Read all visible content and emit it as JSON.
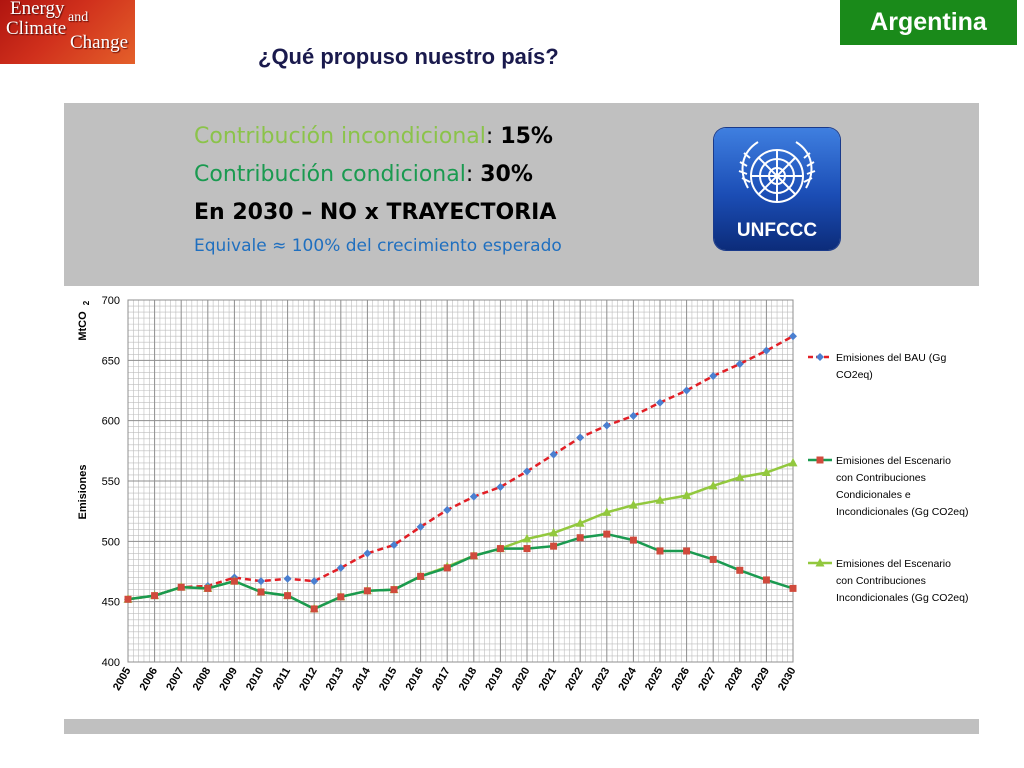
{
  "logo": {
    "line1": "Energy",
    "line2": "and",
    "line3": "Climate",
    "line4": "Change"
  },
  "country_badge": "Argentina",
  "title": "¿Qué propuso nuestro país?",
  "info": {
    "uncond_label": "Contribución incondicional",
    "uncond_value": "15%",
    "cond_label": "Contribución condicional",
    "cond_value": "30%",
    "colon": ": ",
    "line3": "En 2030 – NO x TRAYECTORIA",
    "line4": "Equivale ≈ 100% del crecimiento esperado"
  },
  "unfccc_label": "UNFCCC",
  "chart_data": {
    "type": "line",
    "xlabel": "",
    "ylabel_parts": [
      "Emisiones",
      "MtCO",
      "2"
    ],
    "ylim": [
      400,
      700
    ],
    "yticks": [
      400,
      450,
      500,
      550,
      600,
      650,
      700
    ],
    "grid": true,
    "legend_position": "right",
    "categories": [
      "2005",
      "2006",
      "2007",
      "2008",
      "2009",
      "2010",
      "2011",
      "2012",
      "2013",
      "2014",
      "2015",
      "2016",
      "2017",
      "2018",
      "2019",
      "2020",
      "2021",
      "2022",
      "2023",
      "2024",
      "2025",
      "2026",
      "2027",
      "2028",
      "2029",
      "2030"
    ],
    "series": [
      {
        "name": "Emisiones del BAU (Gg CO2eq)",
        "legend_lines": [
          "Emisiones del BAU (Gg",
          "CO2eq)"
        ],
        "color": "#e21f26",
        "marker_color": "#4a7fd0",
        "marker": "diamond",
        "dashed": true,
        "values": [
          452,
          455,
          462,
          463,
          470,
          467,
          469,
          467,
          478,
          490,
          497,
          512,
          526,
          537,
          545,
          558,
          572,
          586,
          596,
          604,
          615,
          625,
          637,
          647,
          658,
          670
        ]
      },
      {
        "name": "Emisiones del Escenario con Contribuciones Condicionales e Incondicionales (Gg CO2eq)",
        "legend_lines": [
          "Emisiones del Escenario",
          "con Contribuciones",
          "Condicionales e",
          "Incondicionales (Gg CO2eq)"
        ],
        "color": "#1a9a50",
        "marker_color": "#d04a3c",
        "marker": "square",
        "dashed": false,
        "values": [
          452,
          455,
          462,
          461,
          467,
          458,
          455,
          444,
          454,
          459,
          460,
          471,
          478,
          488,
          494,
          494,
          496,
          503,
          506,
          501,
          492,
          492,
          485,
          476,
          468,
          461
        ]
      },
      {
        "name": "Emisiones del Escenario con Contribuciones Incondicionales (Gg CO2eq)",
        "legend_lines": [
          "Emisiones del Escenario",
          "con Contribuciones",
          "Incondicionales (Gg CO2eq)"
        ],
        "color": "#92c83e",
        "marker_color": "#92c83e",
        "marker": "triangle",
        "dashed": false,
        "values": [
          452,
          455,
          462,
          461,
          467,
          458,
          455,
          444,
          454,
          459,
          460,
          471,
          479,
          488,
          494,
          502,
          507,
          515,
          524,
          530,
          534,
          538,
          546,
          553,
          557,
          565
        ]
      }
    ]
  }
}
